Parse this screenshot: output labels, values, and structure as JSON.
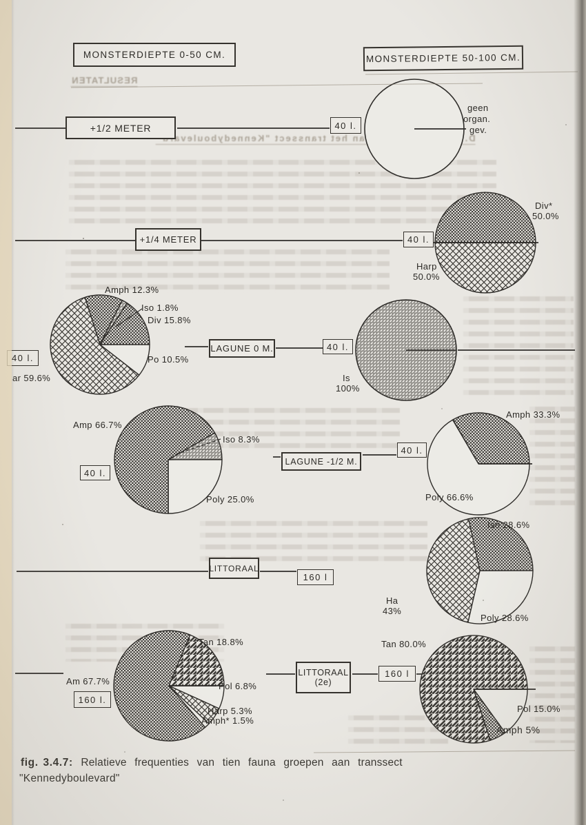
{
  "colors": {
    "ink": "#2f2d2a",
    "paper": "#e9e7e2",
    "bleed_ink": "#8a7e6e"
  },
  "headers": {
    "left": "MONSTERDIEPTE 0-50 CM.",
    "right": "MONSTERDIEPTE 50-100 CM."
  },
  "rows": [
    {
      "label": "+1/2 METER",
      "volume": "40 l."
    },
    {
      "label": "+1/4 METER",
      "volume": "40 l."
    },
    {
      "label": "LAGUNE 0 M.",
      "volume_left": "40 l.",
      "volume_right": "40 l."
    },
    {
      "label": "LAGUNE -1/2 M.",
      "volume_left": "40 l.",
      "volume_right": "40 l."
    },
    {
      "label": "LITTORAAL",
      "volume": "160 l"
    },
    {
      "label_line1": "LITTORAAL",
      "label_line2": "(2e)",
      "volume_left": "160 l.",
      "volume_right": "160 l"
    }
  ],
  "caption": {
    "prefix": "fig. 3.4.7:",
    "line1": "Relatieve frequenties van tien fauna groepen aan transsect",
    "line2": "\"Kennedyboulevard\""
  },
  "bleedthrough": {
    "heading1": "RESULTATEN",
    "heading2": "D. De bodemfauna van het transsect \"Kennedyboulevard\""
  },
  "patterns_legend": {
    "dots": "dense dot / checker hatch",
    "diamond": "diamond crosshatch",
    "stripes": "bold diagonal stripes",
    "fine": "fine diagonal hatch",
    "white": "blank (no hatch)"
  },
  "chart_data": [
    {
      "type": "pie",
      "row": "+1/2 METER",
      "column": "50-100 cm",
      "volume": "40 l.",
      "note_lines": [
        "geen",
        "organ.",
        "gev."
      ],
      "slices": [
        {
          "name": "geen organismen gevonden",
          "pct": 100,
          "pattern": "white",
          "display": ""
        }
      ]
    },
    {
      "type": "pie",
      "row": "+1/4 METER",
      "column": "50-100 cm",
      "volume": "40 l.",
      "slices": [
        {
          "name": "Div*",
          "pct": 50.0,
          "pattern": "dots",
          "display": "Div*",
          "pct_display": "50.0%"
        },
        {
          "name": "Harp",
          "pct": 50.0,
          "pattern": "diamond",
          "display": "Harp",
          "pct_display": "50.0%"
        }
      ]
    },
    {
      "type": "pie",
      "row": "LAGUNE 0 M.",
      "column": "0-50 cm",
      "volume": "40 l.",
      "slices": [
        {
          "name": "Amph",
          "pct": 12.3,
          "pattern": "dots",
          "display": "Amph 12.3%"
        },
        {
          "name": "Iso",
          "pct": 1.8,
          "pattern": "fine",
          "display": "Iso 1.8%"
        },
        {
          "name": "Div",
          "pct": 15.8,
          "pattern": "dots",
          "display": "Div 15.8%"
        },
        {
          "name": "Po",
          "pct": 10.5,
          "pattern": "white",
          "display": "Po 10.5%"
        },
        {
          "name": "ar",
          "pct": 59.6,
          "pattern": "diamond",
          "display": "ar 59.6%"
        }
      ]
    },
    {
      "type": "pie",
      "row": "LAGUNE 0 M.",
      "column": "50-100 cm",
      "volume": "40 l.",
      "slices": [
        {
          "name": "Is",
          "pct": 100,
          "pattern": "fine",
          "display": "Is",
          "pct_display": "100%"
        }
      ]
    },
    {
      "type": "pie",
      "row": "LAGUNE -1/2 M.",
      "column": "0-50 cm",
      "volume": "40 l.",
      "slices": [
        {
          "name": "Iso",
          "pct": 8.3,
          "pattern": "fine",
          "display": "Iso 8.3%"
        },
        {
          "name": "Poly",
          "pct": 25.0,
          "pattern": "white",
          "display": "Poly 25.0%"
        },
        {
          "name": "Amp",
          "pct": 66.7,
          "pattern": "dots",
          "display": "Amp 66.7%"
        }
      ]
    },
    {
      "type": "pie",
      "row": "LAGUNE -1/2 M.",
      "column": "50-100 cm",
      "volume": "40 l.",
      "slices": [
        {
          "name": "Amph",
          "pct": 33.3,
          "pattern": "dots",
          "display": "Amph 33.3%"
        },
        {
          "name": "Poly",
          "pct": 66.6,
          "pattern": "white",
          "display": "Poly 66.6%"
        }
      ]
    },
    {
      "type": "pie",
      "row": "LITTORAAL",
      "column": "50-100 cm",
      "volume": "160 l",
      "slices": [
        {
          "name": "Iso",
          "pct": 28.6,
          "pattern": "dots",
          "display": "Iso 28.6%"
        },
        {
          "name": "Poly",
          "pct": 28.6,
          "pattern": "white",
          "display": "Poly 28.6%"
        },
        {
          "name": "Ha",
          "pct": 43,
          "pattern": "diamond",
          "display": "Ha",
          "pct_display": "43%"
        }
      ]
    },
    {
      "type": "pie",
      "row": "LITTORAAL (2e)",
      "column": "0-50 cm",
      "volume": "160 l.",
      "slices": [
        {
          "name": "Tan",
          "pct": 18.8,
          "pattern": "stripes",
          "display": "Tan 18.8%"
        },
        {
          "name": "Pol",
          "pct": 6.8,
          "pattern": "white",
          "display": "Pol 6.8%"
        },
        {
          "name": "Harp",
          "pct": 5.3,
          "pattern": "diamond",
          "display": "Harp 5.3%"
        },
        {
          "name": "Amph*",
          "pct": 1.5,
          "pattern": "white",
          "display": "Amph* 1.5%"
        },
        {
          "name": "Am",
          "pct": 67.7,
          "pattern": "dots",
          "display": "Am 67.7%"
        }
      ]
    },
    {
      "type": "pie",
      "row": "LITTORAAL (2e)",
      "column": "50-100 cm",
      "volume": "160 l",
      "slices": [
        {
          "name": "Pol",
          "pct": 15.0,
          "pattern": "white",
          "display": "Pol 15.0%"
        },
        {
          "name": "Amph",
          "pct": 5,
          "pattern": "dots",
          "display": "Amph 5%"
        },
        {
          "name": "Tan",
          "pct": 80.0,
          "pattern": "stripes",
          "display": "Tan 80.0%"
        }
      ]
    }
  ]
}
